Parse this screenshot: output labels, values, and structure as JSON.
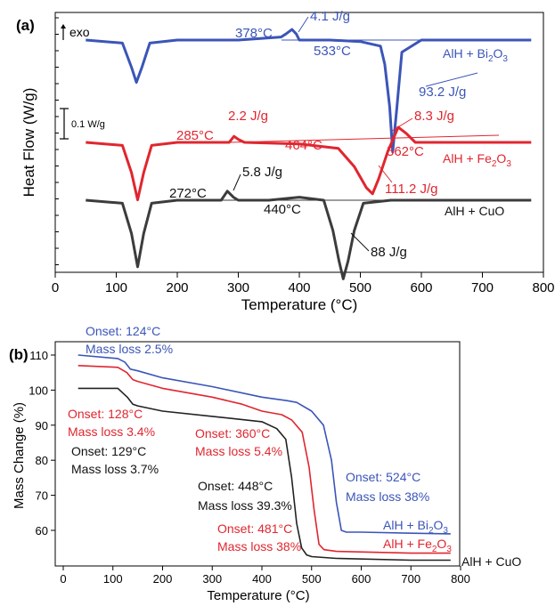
{
  "colors": {
    "bi": "#3b55b8",
    "fe": "#e0262f",
    "cu": "#3c3c3c",
    "axis": "#000000"
  },
  "chart_data": [
    {
      "panel": "(a)",
      "type": "line",
      "xlabel": "Temperature (°C)",
      "ylabel": "Heat Flow (W/g)",
      "xlim": [
        0,
        800
      ],
      "xticks": [
        "0",
        "100",
        "200",
        "300",
        "400",
        "500",
        "600",
        "700",
        "800"
      ],
      "exo_label": "exo",
      "scale_bar_label": "0.1 W/g",
      "series": [
        {
          "name": "AlH + Bi2O3",
          "label_main": "AlH + Bi",
          "label_sub": "2",
          "label_end": "O",
          "label_sub2": "3",
          "color": "#3b55b8",
          "x": [
            50,
            110,
            125,
            133,
            142,
            155,
            200,
            300,
            370,
            378,
            388,
            395,
            400,
            450,
            500,
            533,
            540,
            548,
            553,
            560,
            568,
            600,
            700,
            780
          ],
          "y": [
            0.0,
            -0.01,
            -0.09,
            -0.14,
            -0.09,
            -0.01,
            0.0,
            0.0,
            0.01,
            0.02,
            0.035,
            0.02,
            0.0,
            0.0,
            -0.005,
            -0.02,
            -0.08,
            -0.22,
            -0.37,
            -0.22,
            -0.04,
            0.0,
            0.0,
            0.0
          ],
          "annotations": [
            "378°C",
            "4.1 J/g",
            "533°C",
            "93.2 J/g"
          ]
        },
        {
          "name": "AlH + Fe2O3",
          "label_main": "AlH + Fe",
          "label_sub": "2",
          "label_end": "O",
          "label_sub2": "3",
          "color": "#e0262f",
          "x": [
            50,
            110,
            125,
            135,
            145,
            158,
            200,
            285,
            293,
            300,
            310,
            400,
            464,
            490,
            510,
            520,
            530,
            545,
            562,
            575,
            590,
            650,
            780
          ],
          "y": [
            0.0,
            -0.01,
            -0.1,
            -0.19,
            -0.1,
            -0.01,
            0.0,
            0.0,
            0.02,
            0.01,
            0.0,
            -0.005,
            -0.02,
            -0.08,
            -0.15,
            -0.17,
            -0.12,
            -0.03,
            0.05,
            0.03,
            0.0,
            0.0,
            0.0
          ]
        },
        {
          "name": "AlH + CuO",
          "label": "AlH + CuO",
          "color": "#3c3c3c",
          "x": [
            50,
            110,
            125,
            135,
            145,
            158,
            200,
            272,
            282,
            292,
            300,
            350,
            400,
            440,
            455,
            465,
            472,
            480,
            490,
            505,
            550,
            700,
            780
          ],
          "y": [
            0.0,
            -0.01,
            -0.11,
            -0.22,
            -0.11,
            -0.01,
            0.0,
            0.0,
            0.03,
            0.01,
            0.0,
            0.0,
            0.01,
            0.0,
            -0.1,
            -0.2,
            -0.26,
            -0.2,
            -0.1,
            -0.01,
            0.0,
            0.0,
            0.0
          ]
        }
      ],
      "annotation_labels": {
        "bi_onset1": "378°C",
        "bi_heat1": "4.1 J/g",
        "bi_onset2": "533°C",
        "bi_heat2": "93.2 J/g",
        "fe_onset1": "285°C",
        "fe_heat1": "2.2 J/g",
        "fe_onset2": "464°C",
        "fe_heat2": "111.2 J/g",
        "fe_onset3": "562°C",
        "fe_heat3": "8.3 J/g",
        "cu_onset1": "272°C",
        "cu_heat1": "5.8 J/g",
        "cu_onset2": "440°C",
        "cu_heat2": "88 J/g"
      }
    },
    {
      "panel": "(b)",
      "type": "line",
      "xlabel": "Temperature (°C)",
      "ylabel": "Mass Change (%)",
      "xlim": [
        0,
        800
      ],
      "ylim": [
        52,
        112
      ],
      "xticks": [
        "0",
        "100",
        "200",
        "300",
        "400",
        "500",
        "600",
        "700",
        "800"
      ],
      "yticks": [
        "60",
        "70",
        "80",
        "90",
        "100",
        "110"
      ],
      "series": [
        {
          "name": "AlH + Bi2O3",
          "color": "#3b55b8",
          "x": [
            30,
            110,
            124,
            135,
            150,
            200,
            300,
            400,
            450,
            470,
            500,
            524,
            540,
            550,
            560,
            570,
            600,
            700,
            780
          ],
          "y": [
            110,
            109,
            108,
            106,
            105.5,
            103.5,
            101,
            98,
            97,
            96.5,
            94,
            90,
            80,
            68,
            60,
            59.5,
            59.5,
            59.2,
            59.0
          ],
          "label_main": "AlH + Bi",
          "label_sub": "2",
          "label_end": "O",
          "label_sub2": "3"
        },
        {
          "name": "AlH + Fe2O3",
          "color": "#e0262f",
          "x": [
            30,
            110,
            128,
            140,
            150,
            200,
            300,
            360,
            400,
            440,
            460,
            481,
            495,
            505,
            515,
            525,
            550,
            700,
            780
          ],
          "y": [
            107,
            106.5,
            105,
            103,
            102.5,
            100.5,
            98,
            96,
            94,
            93,
            91.5,
            88,
            78,
            66,
            56,
            54.5,
            54,
            53.5,
            53.5
          ],
          "label_main": "AlH + Fe",
          "label_sub": "2",
          "label_end": "O",
          "label_sub2": "3"
        },
        {
          "name": "AlH + CuO",
          "color": "#222222",
          "x": [
            30,
            110,
            129,
            140,
            150,
            200,
            300,
            400,
            430,
            448,
            460,
            470,
            480,
            490,
            500,
            550,
            700,
            780
          ],
          "y": [
            100.5,
            100.5,
            98,
            96,
            95.5,
            94,
            92.5,
            91,
            89,
            86,
            75,
            62,
            55,
            53,
            52.5,
            52,
            51.5,
            51.5
          ],
          "label": "AlH + CuO"
        }
      ],
      "annotation_labels": {
        "bi_onset": "Onset: 124°C",
        "bi_mass": "Mass loss 2.5%",
        "fe_onset": "Onset: 128°C",
        "fe_mass": "Mass loss 3.4%",
        "cu_onset": "Onset: 129°C",
        "cu_mass": "Mass loss 3.7%",
        "fe_onset2": "Onset: 360°C",
        "fe_mass2": "Mass loss 5.4%",
        "cu_onset2": "Onset: 448°C",
        "cu_mass2": "Mass loss 39.3%",
        "bi_onset2": "Onset: 524°C",
        "bi_mass2": "Mass loss 38%",
        "fe_onset3": "Onset: 481°C",
        "fe_mass3": "Mass loss 38%"
      }
    }
  ]
}
